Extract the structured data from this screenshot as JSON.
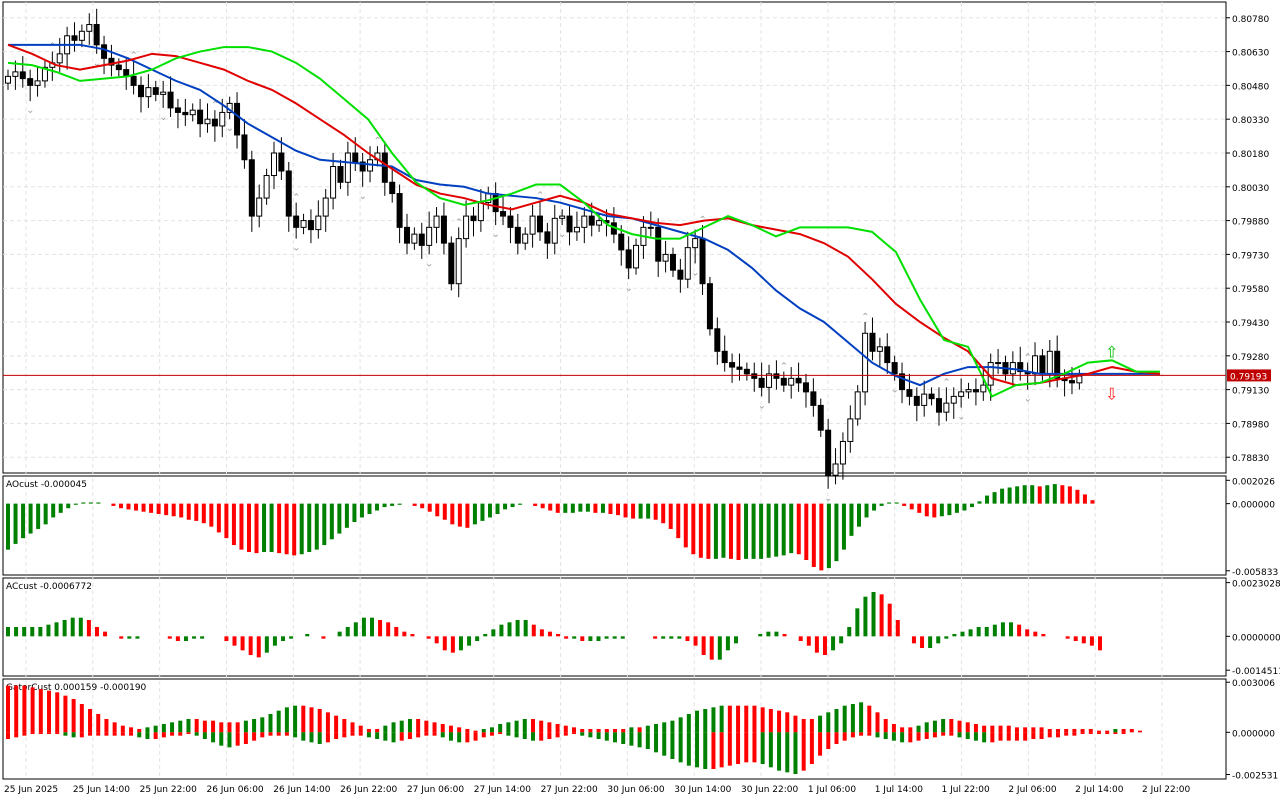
{
  "colors": {
    "background": "#ffffff",
    "grid": "#e3e3e3",
    "frame": "#000000",
    "bull_body": "#ffffff",
    "bear_body": "#000000",
    "line_fast": "#00e000",
    "line_mid": "#e00000",
    "line_slow": "#0040c0",
    "price_line": "#c00000",
    "hist_up": "#008000",
    "hist_down": "#ff0000",
    "fractal": "#a0a0a0"
  },
  "chart_data": [
    {
      "type": "candlestick",
      "title": "",
      "y_ticks": [
        "0.80780",
        "0.80630",
        "0.80480",
        "0.80330",
        "0.80180",
        "0.80030",
        "0.79880",
        "0.79730",
        "0.79580",
        "0.79430",
        "0.79280",
        "0.79130",
        "0.78980",
        "0.78830"
      ],
      "ylim": [
        0.7876,
        0.8085
      ],
      "current_price": "0.79193",
      "x_labels": [
        "25 Jun 2025",
        "25 Jun 14:00",
        "25 Jun 22:00",
        "26 Jun 06:00",
        "26 Jun 14:00",
        "26 Jun 22:00",
        "27 Jun 06:00",
        "27 Jun 14:00",
        "27 Jun 22:00",
        "30 Jun 06:00",
        "30 Jun 14:00",
        "30 Jun 22:00",
        "1 Jul 06:00",
        "1 Jul 14:00",
        "1 Jul 22:00",
        "2 Jul 06:00",
        "2 Jul 14:00",
        "2 Jul 22:00"
      ],
      "closes": [
        0.8052,
        0.8054,
        0.8051,
        0.8048,
        0.805,
        0.8056,
        0.8058,
        0.8062,
        0.807,
        0.8068,
        0.8072,
        0.8075,
        0.8066,
        0.806,
        0.8057,
        0.8055,
        0.8052,
        0.8048,
        0.8043,
        0.8047,
        0.8044,
        0.8045,
        0.8038,
        0.8036,
        0.8035,
        0.8037,
        0.8031,
        0.8033,
        0.803,
        0.8036,
        0.804,
        0.8026,
        0.8015,
        0.799,
        0.7998,
        0.8008,
        0.8018,
        0.801,
        0.799,
        0.7985,
        0.7988,
        0.7984,
        0.799,
        0.7998,
        0.8012,
        0.8005,
        0.8018,
        0.8014,
        0.801,
        0.8015,
        0.8018,
        0.8005,
        0.8,
        0.7985,
        0.7978,
        0.7982,
        0.7977,
        0.7985,
        0.799,
        0.7978,
        0.796,
        0.798,
        0.799,
        0.7988,
        0.7996,
        0.8,
        0.7992,
        0.799,
        0.7985,
        0.7978,
        0.7982,
        0.799,
        0.7983,
        0.7978,
        0.7989,
        0.799,
        0.7983,
        0.7985,
        0.799,
        0.7986,
        0.7988,
        0.7987,
        0.7982,
        0.7975,
        0.7967,
        0.7977,
        0.7985,
        0.7985,
        0.797,
        0.7973,
        0.7966,
        0.7962,
        0.7976,
        0.798,
        0.796,
        0.794,
        0.793,
        0.7925,
        0.7923,
        0.7922,
        0.792,
        0.7918,
        0.7914,
        0.792,
        0.7918,
        0.7915,
        0.7918,
        0.7916,
        0.7912,
        0.7906,
        0.7895,
        0.7875,
        0.788,
        0.789,
        0.79,
        0.7912,
        0.7938,
        0.793,
        0.7932,
        0.7925,
        0.792,
        0.7913,
        0.791,
        0.7906,
        0.7911,
        0.7909,
        0.7903,
        0.7907,
        0.791,
        0.7912,
        0.7913,
        0.7912,
        0.7915,
        0.7925,
        0.7925,
        0.792,
        0.7925,
        0.7921,
        0.792,
        0.7928,
        0.792,
        0.793,
        0.7918,
        0.7917,
        0.7916,
        0.7919
      ],
      "ma_fast": [
        0.8058,
        0.8057,
        0.8054,
        0.805,
        0.8051,
        0.8052,
        0.8055,
        0.806,
        0.8063,
        0.8065,
        0.8065,
        0.8063,
        0.8058,
        0.8051,
        0.8042,
        0.8033,
        0.8018,
        0.8005,
        0.7998,
        0.7995,
        0.7997,
        0.8,
        0.8004,
        0.8004,
        0.7996,
        0.7986,
        0.7982,
        0.798,
        0.798,
        0.7985,
        0.799,
        0.7986,
        0.7981,
        0.7985,
        0.7985,
        0.7985,
        0.7983,
        0.7974,
        0.7953,
        0.7935,
        0.7932,
        0.791,
        0.7915,
        0.7916,
        0.792,
        0.7925,
        0.7926,
        0.7921,
        0.7921
      ],
      "ma_mid": [
        0.8066,
        0.8062,
        0.8057,
        0.8055,
        0.8057,
        0.8059,
        0.8062,
        0.8061,
        0.8058,
        0.8055,
        0.805,
        0.8046,
        0.804,
        0.8033,
        0.8026,
        0.8018,
        0.8011,
        0.8004,
        0.8,
        0.7998,
        0.7995,
        0.7993,
        0.7996,
        0.7999,
        0.7996,
        0.7991,
        0.7989,
        0.7987,
        0.7986,
        0.7988,
        0.7989,
        0.7986,
        0.7984,
        0.7982,
        0.7978,
        0.7972,
        0.7962,
        0.7951,
        0.7943,
        0.7936,
        0.793,
        0.7918,
        0.7915,
        0.7916,
        0.7918,
        0.792,
        0.7923,
        0.7921,
        0.792
      ],
      "ma_slow": [
        0.8066,
        0.8066,
        0.8066,
        0.8066,
        0.8064,
        0.806,
        0.8055,
        0.805,
        0.8046,
        0.8039,
        0.8031,
        0.8025,
        0.8019,
        0.8015,
        0.8014,
        0.8013,
        0.8012,
        0.8006,
        0.8004,
        0.8003,
        0.8,
        0.7999,
        0.7998,
        0.7996,
        0.7993,
        0.799,
        0.7989,
        0.7986,
        0.7983,
        0.798,
        0.7975,
        0.7967,
        0.7957,
        0.7949,
        0.7943,
        0.7934,
        0.7925,
        0.7919,
        0.7915,
        0.792,
        0.7923,
        0.7923,
        0.7922,
        0.792,
        0.792,
        0.792,
        0.792,
        0.792,
        0.792
      ]
    },
    {
      "type": "histogram",
      "title": "AOcust -0.000045",
      "y_ticks": [
        "0.002026",
        "0.000000",
        "-0.005833"
      ],
      "ylim": [
        -0.0062,
        0.0024
      ],
      "values": [
        -0.004,
        -0.0035,
        -0.003,
        -0.0026,
        -0.0022,
        -0.0018,
        -0.0012,
        -0.0008,
        -0.0004,
        -0.0001,
        0.0001,
        0.0001,
        0.0001,
        0.0,
        -0.0002,
        -0.0004,
        -0.0005,
        -0.0006,
        -0.0007,
        -0.0008,
        -0.0009,
        -0.001,
        -0.0011,
        -0.0012,
        -0.0014,
        -0.0015,
        -0.0017,
        -0.002,
        -0.0025,
        -0.003,
        -0.0036,
        -0.004,
        -0.0042,
        -0.0043,
        -0.0042,
        -0.0042,
        -0.0043,
        -0.0044,
        -0.0045,
        -0.0044,
        -0.0042,
        -0.004,
        -0.0036,
        -0.0031,
        -0.0026,
        -0.0021,
        -0.0016,
        -0.0012,
        -0.0009,
        -0.0006,
        -0.0003,
        -0.0002,
        -0.0001,
        0.0,
        -0.0002,
        -0.0004,
        -0.0007,
        -0.0011,
        -0.0014,
        -0.0018,
        -0.002,
        -0.0021,
        -0.0018,
        -0.0015,
        -0.0012,
        -0.0009,
        -0.0005,
        -0.0003,
        -0.0001,
        0.0,
        -0.0002,
        -0.0004,
        -0.0006,
        -0.0008,
        -0.0008,
        -0.0008,
        -0.0007,
        -0.0007,
        -0.0008,
        -0.0008,
        -0.0009,
        -0.001,
        -0.0012,
        -0.0013,
        -0.0013,
        -0.0013,
        -0.0014,
        -0.0017,
        -0.0022,
        -0.003,
        -0.0038,
        -0.0044,
        -0.0047,
        -0.0048,
        -0.0048,
        -0.0047,
        -0.0048,
        -0.0049,
        -0.0048,
        -0.0048,
        -0.0048,
        -0.0047,
        -0.0046,
        -0.0045,
        -0.0043,
        -0.0044,
        -0.0049,
        -0.0055,
        -0.0058,
        -0.0056,
        -0.005,
        -0.004,
        -0.0028,
        -0.002,
        -0.0012,
        -0.0006,
        -0.0002,
        0.0001,
        0.0001,
        -0.0002,
        -0.0005,
        -0.0008,
        -0.0011,
        -0.0012,
        -0.0011,
        -0.001,
        -0.0008,
        -0.0006,
        -0.0003,
        0.0002,
        0.0007,
        0.001,
        0.0013,
        0.0014,
        0.0015,
        0.0016,
        0.0016,
        0.0015,
        0.0016,
        0.0017,
        0.0016,
        0.0015,
        0.0012,
        0.0008,
        0.0003,
        -0.0
      ]
    },
    {
      "type": "histogram",
      "title": "ACcust -0.0006772",
      "y_ticks": [
        "0.0023028",
        "0.0000000",
        "-0.0014511"
      ],
      "ylim": [
        -0.0017,
        0.0025
      ],
      "values": [
        0.0004,
        0.0004,
        0.0004,
        0.0004,
        0.0004,
        0.0005,
        0.0006,
        0.0007,
        0.0008,
        0.0008,
        0.0007,
        0.0004,
        0.0002,
        0.0,
        -0.0001,
        -0.0001,
        -0.0001,
        0.0,
        0.0,
        0.0,
        -0.0001,
        -0.0002,
        -0.0002,
        -0.0001,
        -0.0001,
        0.0,
        0.0,
        -0.0002,
        -0.0004,
        -0.0006,
        -0.0008,
        -0.0009,
        -0.0007,
        -0.0004,
        -0.0002,
        -0.0001,
        0.0,
        0.0001,
        0.0,
        -0.0001,
        0.0,
        0.0002,
        0.0004,
        0.0006,
        0.0008,
        0.0008,
        0.0007,
        0.0006,
        0.0004,
        0.0002,
        0.0001,
        0.0,
        -0.0001,
        -0.0003,
        -0.0006,
        -0.0007,
        -0.0006,
        -0.0004,
        -0.0002,
        0.0001,
        0.0003,
        0.0005,
        0.0006,
        0.0007,
        0.0007,
        0.0005,
        0.0003,
        0.0002,
        0.0001,
        -0.0001,
        -0.0001,
        -0.0002,
        -0.0002,
        -0.0002,
        -0.0001,
        -0.0001,
        -0.0001,
        0.0,
        0.0,
        0.0,
        -0.0001,
        -0.0001,
        -0.0001,
        -0.0001,
        -0.0002,
        -0.0004,
        -0.0008,
        -0.001,
        -0.001,
        -0.0006,
        -0.0003,
        0.0,
        0.0,
        0.0001,
        0.0002,
        0.0002,
        0.0001,
        0.0,
        -0.0002,
        -0.0004,
        -0.0007,
        -0.0008,
        -0.0006,
        -0.0003,
        0.0004,
        0.0012,
        0.0017,
        0.0019,
        0.0018,
        0.0014,
        0.0007,
        0.0,
        -0.0003,
        -0.0005,
        -0.0005,
        -0.0003,
        -0.0001,
        0.0001,
        0.0002,
        0.0003,
        0.0004,
        0.0004,
        0.0005,
        0.0006,
        0.0006,
        0.0005,
        0.0003,
        0.0002,
        0.0001,
        0.0,
        0.0,
        -0.0001,
        -0.0002,
        -0.0003,
        -0.0004,
        -0.0006
      ]
    },
    {
      "type": "histogram-gator",
      "title": "GatorCust 0.000159 -0.000190",
      "y_ticks": [
        "0.003006",
        "0.000000",
        "-0.002531"
      ],
      "ylim": [
        -0.0028,
        0.0032
      ],
      "upper": [
        0.0028,
        0.0028,
        0.0028,
        0.0027,
        0.0026,
        0.0025,
        0.0024,
        0.0022,
        0.002,
        0.0017,
        0.0014,
        0.0011,
        0.0008,
        0.0006,
        0.0004,
        0.0003,
        0.0002,
        0.0003,
        0.0004,
        0.0005,
        0.0006,
        0.0007,
        0.0008,
        0.0008,
        0.0007,
        0.0007,
        0.0006,
        0.0006,
        0.0006,
        0.0007,
        0.0008,
        0.0009,
        0.0011,
        0.0013,
        0.0015,
        0.0016,
        0.0016,
        0.0015,
        0.0014,
        0.0012,
        0.001,
        0.0008,
        0.0006,
        0.0004,
        0.0002,
        0.0002,
        0.0004,
        0.0006,
        0.0007,
        0.0008,
        0.0008,
        0.0007,
        0.0006,
        0.0005,
        0.0004,
        0.0003,
        0.0002,
        0.0001,
        0.0002,
        0.0003,
        0.0005,
        0.0006,
        0.0007,
        0.0008,
        0.0008,
        0.0007,
        0.0006,
        0.0005,
        0.0004,
        0.0003,
        0.0002,
        0.0002,
        0.0002,
        0.0002,
        0.0002,
        0.0002,
        0.0003,
        0.0003,
        0.0004,
        0.0005,
        0.0006,
        0.0007,
        0.0009,
        0.0011,
        0.0013,
        0.0014,
        0.0015,
        0.0016,
        0.0016,
        0.0016,
        0.0016,
        0.0016,
        0.0015,
        0.0014,
        0.0013,
        0.0012,
        0.001,
        0.0008,
        0.0008,
        0.001,
        0.0012,
        0.0014,
        0.0016,
        0.0017,
        0.0018,
        0.0016,
        0.0012,
        0.0008,
        0.0005,
        0.0003,
        0.0003,
        0.0004,
        0.0006,
        0.0007,
        0.0008,
        0.0008,
        0.0007,
        0.0006,
        0.0005,
        0.0004,
        0.0004,
        0.0004,
        0.0004,
        0.0003,
        0.0003,
        0.0003,
        0.0003,
        0.0002,
        0.0002,
        0.0002,
        0.0002,
        0.0002,
        0.0002,
        0.0001,
        0.0001,
        0.0002,
        0.0002,
        0.0002,
        0.0001
      ],
      "lower": [
        -0.0004,
        -0.0003,
        -0.0002,
        -0.0001,
        -0.0001,
        -0.0001,
        -0.0001,
        -0.0002,
        -0.0003,
        -0.0003,
        -0.0002,
        -0.0002,
        -0.0002,
        -0.0002,
        -0.0002,
        -0.0002,
        -0.0003,
        -0.0004,
        -0.0004,
        -0.0003,
        -0.0002,
        -0.0002,
        -0.0001,
        -0.0002,
        -0.0004,
        -0.0006,
        -0.0008,
        -0.0009,
        -0.0008,
        -0.0007,
        -0.0005,
        -0.0003,
        -0.0002,
        -0.0002,
        -0.0002,
        -0.0003,
        -0.0005,
        -0.0006,
        -0.0007,
        -0.0006,
        -0.0004,
        -0.0003,
        -0.0002,
        -0.0002,
        -0.0003,
        -0.0004,
        -0.0005,
        -0.0006,
        -0.0005,
        -0.0004,
        -0.0003,
        -0.0002,
        -0.0002,
        -0.0003,
        -0.0005,
        -0.0006,
        -0.0006,
        -0.0005,
        -0.0003,
        -0.0002,
        -0.0001,
        -0.0002,
        -0.0003,
        -0.0004,
        -0.0005,
        -0.0005,
        -0.0004,
        -0.0003,
        -0.0002,
        -0.0001,
        -0.0002,
        -0.0003,
        -0.0004,
        -0.0005,
        -0.0006,
        -0.0007,
        -0.0008,
        -0.0009,
        -0.001,
        -0.0012,
        -0.0014,
        -0.0016,
        -0.0018,
        -0.002,
        -0.0021,
        -0.0022,
        -0.0022,
        -0.0021,
        -0.002,
        -0.0019,
        -0.0018,
        -0.0018,
        -0.0019,
        -0.0021,
        -0.0023,
        -0.0024,
        -0.0025,
        -0.0023,
        -0.0019,
        -0.0014,
        -0.001,
        -0.0007,
        -0.0005,
        -0.0003,
        -0.0002,
        -0.0002,
        -0.0003,
        -0.0004,
        -0.0005,
        -0.0006,
        -0.0006,
        -0.0005,
        -0.0004,
        -0.0003,
        -0.0002,
        -0.0002,
        -0.0003,
        -0.0004,
        -0.0005,
        -0.0006,
        -0.0006,
        -0.0005,
        -0.0005,
        -0.0005,
        -0.0005,
        -0.0004,
        -0.0004,
        -0.0003,
        -0.0003,
        -0.0002,
        -0.0002,
        -0.0001,
        -0.0001,
        -0.0001,
        -0.0001,
        -0.0001,
        -0.0001,
        0.0,
        0.0
      ]
    }
  ]
}
